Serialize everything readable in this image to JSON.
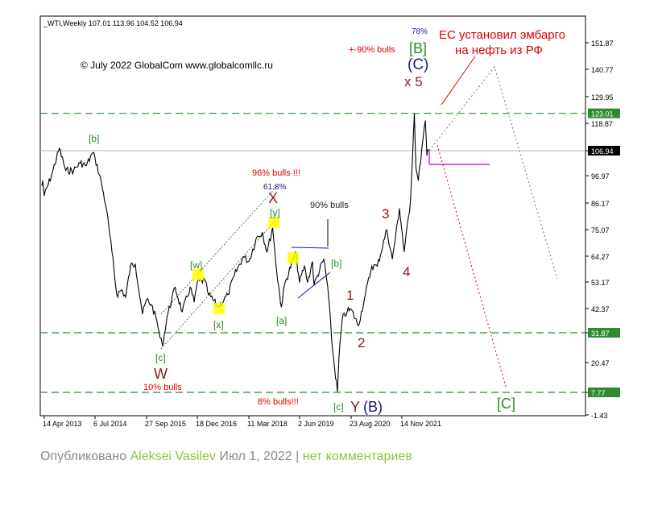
{
  "chart_data": {
    "type": "line",
    "symbol_header": "_WTI,Weekly  107.01 113.96 104.52 106.94",
    "copyright": "© July 2022 GlobalCom www.globalcomllc.ru",
    "y_scale": "log",
    "ylim": [
      -1.43,
      160
    ],
    "y_ticks": [
      "151.87",
      "140.77",
      "129.95",
      "118.87",
      "106.94",
      "96.97",
      "86.17",
      "75.07",
      "64.27",
      "53.17",
      "42.37",
      "31.87",
      "20.47",
      "7.77",
      "-1.43"
    ],
    "y_tick_values": [
      151.87,
      140.77,
      129.95,
      118.87,
      106.94,
      96.97,
      86.17,
      75.07,
      64.27,
      53.17,
      42.37,
      31.87,
      20.47,
      7.77,
      -1.43
    ],
    "x_ticks": [
      "14 Apr 2013",
      "6 Jul 2014",
      "27 Sep 2015",
      "18 Dec 2016",
      "11 Mar 2018",
      "2 Jun 2019",
      "23 Aug 2020",
      "14 Nov 2021"
    ],
    "x_tick_dates": [
      "2013-04-14",
      "2014-07-06",
      "2015-09-27",
      "2016-12-18",
      "2018-03-11",
      "2019-06-02",
      "2020-08-23",
      "2021-11-14"
    ],
    "x_range_dates": [
      "2013-01-01",
      "2022-07-10"
    ],
    "current_price": {
      "label": "106.94",
      "value": 106.94
    },
    "levels": [
      {
        "label": "123.01",
        "value": 123.01,
        "color": "#2e8b2e"
      },
      {
        "label": "31.87",
        "value": 31.87,
        "color": "#2e8b2e"
      },
      {
        "label": "7.77",
        "value": 7.77,
        "color": "#2e8b2e"
      }
    ],
    "series": [
      {
        "points": [
          [
            "2013-01-01",
            93
          ],
          [
            "2013-02-05",
            95
          ],
          [
            "2013-04-14",
            89
          ],
          [
            "2013-06-23",
            98
          ],
          [
            "2013-08-25",
            108
          ],
          [
            "2013-10-20",
            99
          ],
          [
            "2013-12-29",
            99
          ],
          [
            "2014-02-23",
            102
          ],
          [
            "2014-04-20",
            101
          ],
          [
            "2014-06-15",
            106
          ],
          [
            "2014-07-06",
            104
          ],
          [
            "2014-08-31",
            94
          ],
          [
            "2014-10-12",
            84
          ],
          [
            "2014-11-30",
            66
          ],
          [
            "2015-01-11",
            48
          ],
          [
            "2015-02-22",
            50
          ],
          [
            "2015-03-29",
            47
          ],
          [
            "2015-05-10",
            60
          ],
          [
            "2015-06-21",
            61
          ],
          [
            "2015-08-23",
            40
          ],
          [
            "2015-09-27",
            46
          ],
          [
            "2015-11-08",
            44
          ],
          [
            "2015-12-27",
            37
          ],
          [
            "2016-01-24",
            30
          ],
          [
            "2016-02-14",
            27
          ],
          [
            "2016-03-27",
            39
          ],
          [
            "2016-06-05",
            51
          ],
          [
            "2016-08-07",
            41
          ],
          [
            "2016-10-16",
            51
          ],
          [
            "2016-11-20",
            45
          ],
          [
            "2016-12-18",
            53
          ],
          [
            "2017-02-19",
            54
          ],
          [
            "2017-03-26",
            48
          ],
          [
            "2017-06-18",
            43
          ],
          [
            "2017-09-10",
            48
          ],
          [
            "2017-11-05",
            56
          ],
          [
            "2018-01-21",
            64
          ],
          [
            "2018-03-11",
            62
          ],
          [
            "2018-05-20",
            72
          ],
          [
            "2018-07-08",
            74
          ],
          [
            "2018-08-19",
            66
          ],
          [
            "2018-10-07",
            76
          ],
          [
            "2018-11-11",
            58
          ],
          [
            "2018-12-23",
            43
          ],
          [
            "2019-01-20",
            52
          ],
          [
            "2019-04-28",
            66
          ],
          [
            "2019-06-02",
            53
          ],
          [
            "2019-07-14",
            60
          ],
          [
            "2019-08-11",
            53
          ],
          [
            "2019-09-22",
            62
          ],
          [
            "2019-10-06",
            52
          ],
          [
            "2019-12-29",
            63
          ],
          [
            "2020-02-02",
            51
          ],
          [
            "2020-03-15",
            25
          ],
          [
            "2020-04-26",
            8
          ],
          [
            "2020-05-10",
            23
          ],
          [
            "2020-06-07",
            38
          ],
          [
            "2020-07-19",
            41
          ],
          [
            "2020-08-23",
            42
          ],
          [
            "2020-10-25",
            35
          ],
          [
            "2020-12-27",
            48
          ],
          [
            "2021-02-21",
            60
          ],
          [
            "2021-04-11",
            60
          ],
          [
            "2021-07-04",
            75
          ],
          [
            "2021-08-22",
            63
          ],
          [
            "2021-10-24",
            84
          ],
          [
            "2021-12-05",
            66
          ],
          [
            "2022-01-30",
            87
          ],
          [
            "2022-03-06",
            123
          ],
          [
            "2022-03-20",
            100
          ],
          [
            "2022-04-10",
            95
          ],
          [
            "2022-05-22",
            112
          ],
          [
            "2022-06-12",
            120
          ],
          [
            "2022-06-26",
            105
          ],
          [
            "2022-07-10",
            106.94
          ]
        ]
      }
    ],
    "annotations": [
      {
        "id": "b_2014",
        "text": "[b]",
        "color": "#2e8b2e"
      },
      {
        "id": "c_2016",
        "text": "[c]",
        "color": "#2e8b2e"
      },
      {
        "id": "W",
        "text": "W",
        "color": "#8b1a1a"
      },
      {
        "id": "bulls10",
        "text": "10% bulls",
        "color": "#dd0000"
      },
      {
        "id": "w_2016",
        "text": "[w]",
        "color": "#2e8b2e"
      },
      {
        "id": "x_2017",
        "text": "[x]",
        "color": "#2e8b2e"
      },
      {
        "id": "y_2018",
        "text": "[y]",
        "color": "#2e8b2e"
      },
      {
        "id": "X",
        "text": "X",
        "color": "#8b1a1a"
      },
      {
        "id": "fib618",
        "text": "61.8%",
        "color": "#1a1a8b"
      },
      {
        "id": "bulls96",
        "text": "96% bulls !!!",
        "color": "#dd0000"
      },
      {
        "id": "a_2018",
        "text": "[a]",
        "color": "#2e8b2e"
      },
      {
        "id": "b_2019",
        "text": "[b]",
        "color": "#2e8b2e"
      },
      {
        "id": "bulls90",
        "text": "90% bulls",
        "color": "#222222"
      },
      {
        "id": "c_2020",
        "text": "[c]",
        "color": "#2e8b2e"
      },
      {
        "id": "Y",
        "text": "Y",
        "color": "#8b1a1a"
      },
      {
        "id": "B_paren",
        "text": "(B)",
        "color": "#1a1a8b"
      },
      {
        "id": "bulls8",
        "text": "8% bulls!!!",
        "color": "#dd0000"
      },
      {
        "id": "w1",
        "text": "1",
        "color": "#8b1a1a"
      },
      {
        "id": "w2",
        "text": "2",
        "color": "#8b1a1a"
      },
      {
        "id": "w3",
        "text": "3",
        "color": "#8b1a1a"
      },
      {
        "id": "w4",
        "text": "4",
        "color": "#8b1a1a"
      },
      {
        "id": "x5",
        "text": "x 5",
        "color": "#8b1a1a"
      },
      {
        "id": "C_paren",
        "text": "(C)",
        "color": "#1a1a8b"
      },
      {
        "id": "B_bracket",
        "text": "[B]",
        "color": "#2e8b2e"
      },
      {
        "id": "pct78",
        "text": "78%",
        "color": "#1a1a8b"
      },
      {
        "id": "bulls_plus90",
        "text": "+-90% bulls",
        "color": "#dd0000"
      },
      {
        "id": "embargo1",
        "text": "ЕС установил эмбарго",
        "color": "#dd0000"
      },
      {
        "id": "embargo2",
        "text": "на нефть из РФ",
        "color": "#dd0000"
      },
      {
        "id": "C_bracket",
        "text": "[C]",
        "color": "#2e8b2e"
      }
    ]
  },
  "byline": {
    "prefix": "Опубликовано ",
    "author": "Aleksei Vasilev",
    "date": " Июл 1, 2022 | ",
    "comments": "нет комментариев"
  }
}
